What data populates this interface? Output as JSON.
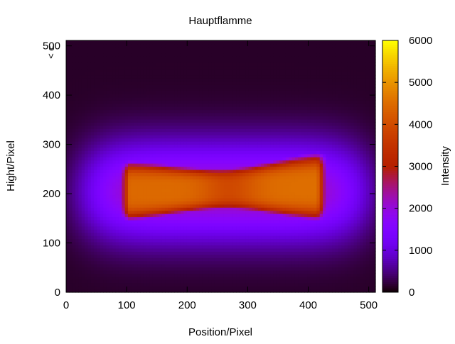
{
  "chart_data": {
    "type": "heatmap",
    "title": "Hauptflamme",
    "xlabel": "Position/Pixel",
    "ylabel": "Hight/Pixel",
    "colorbar_label": "Intensity",
    "xlim": [
      0,
      511
    ],
    "ylim": [
      0,
      511
    ],
    "clim": [
      0,
      6000
    ],
    "x_ticks": [
      0,
      100,
      200,
      300,
      400,
      500
    ],
    "y_ticks": [
      0,
      100,
      200,
      300,
      400,
      500
    ],
    "colorbar_ticks": [
      0,
      1000,
      2000,
      3000,
      4000,
      5000,
      6000
    ],
    "palette": "gnuplot (black-blue-purple-red-orange-yellow)",
    "corner_annotation": "< c",
    "grid": false,
    "features": {
      "flame_core_peaks": [
        {
          "x": 150,
          "y": 210,
          "intensity": 4300
        },
        {
          "x": 385,
          "y": 215,
          "intensity": 4400
        }
      ],
      "core_center_y": 205,
      "core_x_range": [
        80,
        440
      ],
      "waist": {
        "x": 270,
        "intensity": 3800
      },
      "background_intensity": 150
    }
  }
}
